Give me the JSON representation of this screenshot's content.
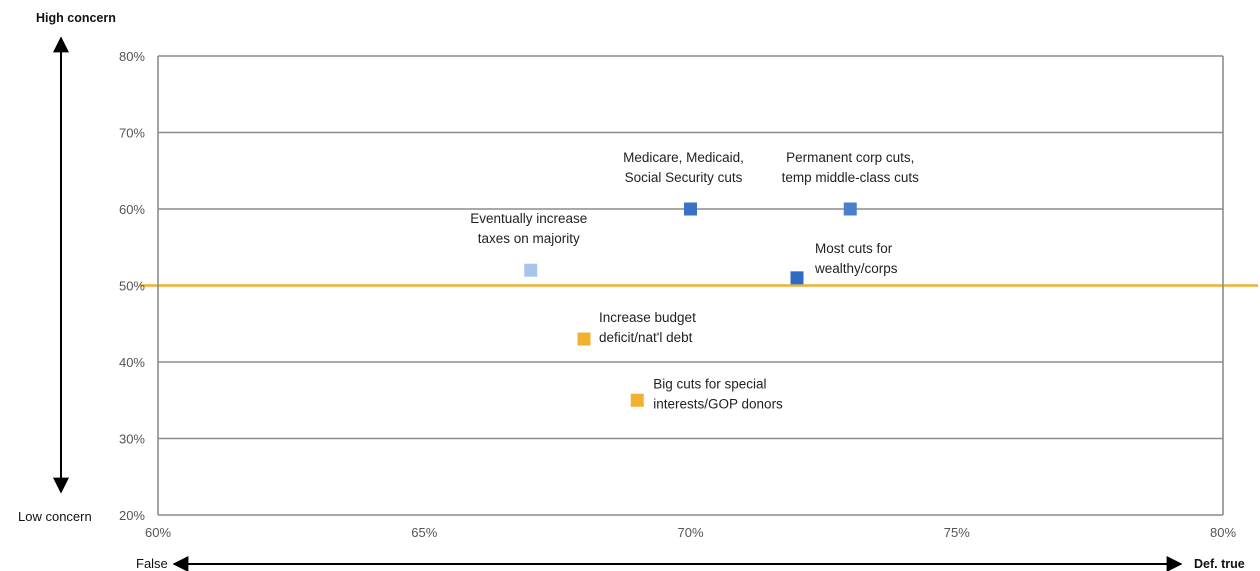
{
  "chart_data": {
    "type": "scatter",
    "title": "",
    "xlabel": "",
    "ylabel": "",
    "xlim": [
      0.6,
      0.8
    ],
    "ylim": [
      0.2,
      0.8
    ],
    "x_ticks": [
      0.6,
      0.65,
      0.7,
      0.75,
      0.8
    ],
    "x_tick_labels": [
      "60%",
      "65%",
      "70%",
      "75%",
      "80%"
    ],
    "y_ticks": [
      0.2,
      0.3,
      0.4,
      0.5,
      0.6,
      0.7,
      0.8
    ],
    "y_tick_labels": [
      "20%",
      "30%",
      "40%",
      "50%",
      "60%",
      "70%",
      "80%"
    ],
    "grid": "horizontal",
    "reference_line": {
      "y": 0.5,
      "color": "#F0B030"
    },
    "y_direction": {
      "top": "High concern",
      "bottom": "Low concern"
    },
    "x_direction": {
      "left": "False",
      "right": "Def. true"
    },
    "points": [
      {
        "x": 0.67,
        "y": 0.52,
        "label": [
          "Eventually  increase",
          "taxes on majority"
        ],
        "color": "#A9C4EB"
      },
      {
        "x": 0.7,
        "y": 0.6,
        "label": [
          "Medicare,  Medicaid,",
          "Social Security cuts"
        ],
        "color": "#3A72C6"
      },
      {
        "x": 0.73,
        "y": 0.6,
        "label": [
          "Permanent  corp cuts,",
          "temp middle-class  cuts"
        ],
        "color": "#4A7FCC"
      },
      {
        "x": 0.72,
        "y": 0.51,
        "label": [
          "Most cuts for",
          "wealthy/corps"
        ],
        "color": "#2F6BC4"
      },
      {
        "x": 0.68,
        "y": 0.43,
        "label": [
          "Increase  budget",
          "deficit/nat'l debt"
        ],
        "color": "#F0B030"
      },
      {
        "x": 0.69,
        "y": 0.35,
        "label": [
          "Big cuts for special",
          "interests/GOP donors"
        ],
        "color": "#F0B030"
      }
    ]
  }
}
